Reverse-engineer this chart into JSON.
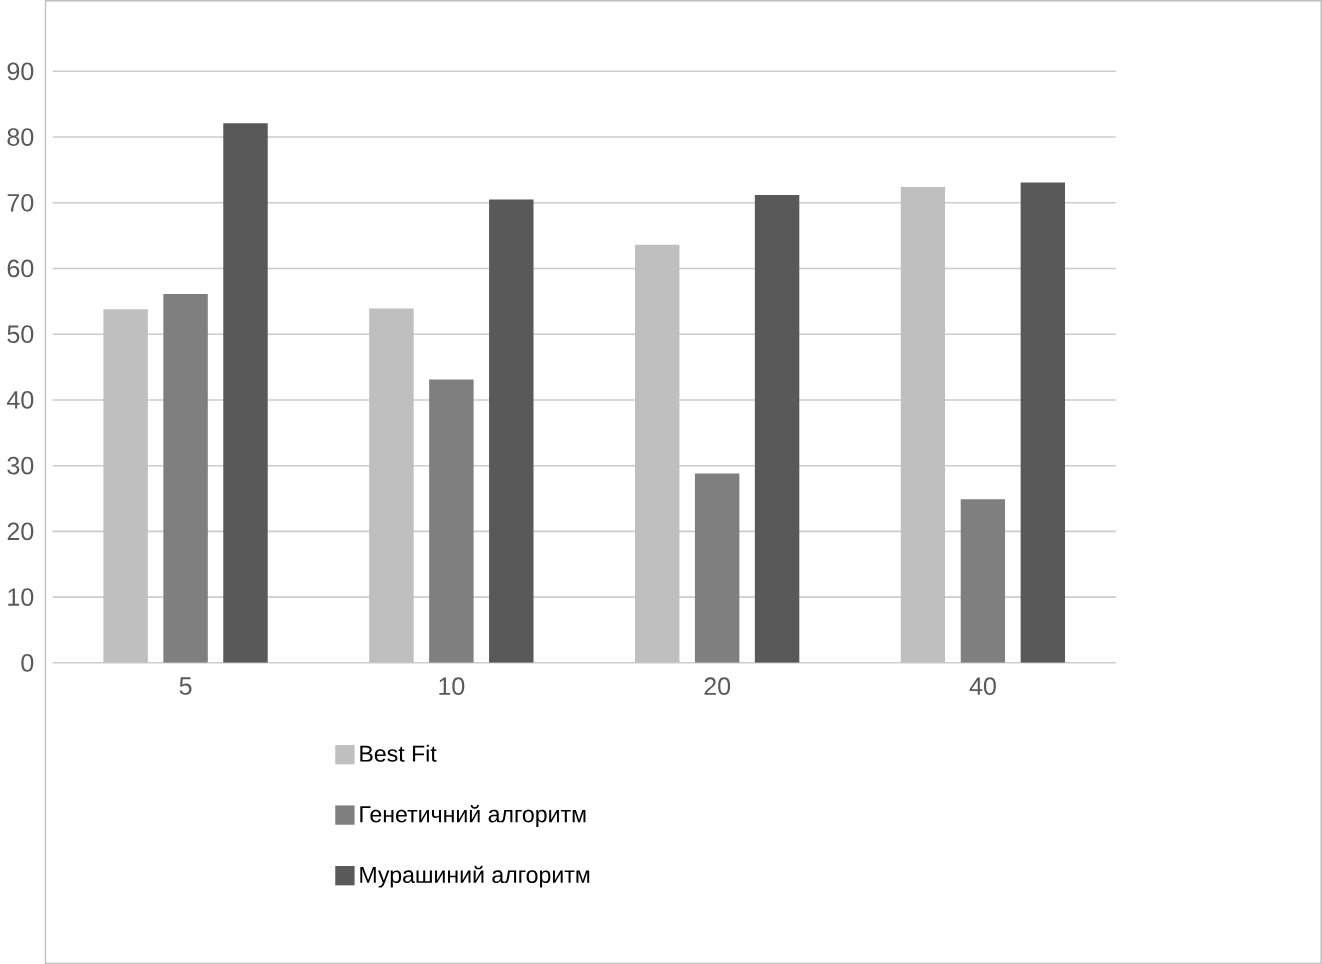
{
  "chart_data": {
    "type": "bar",
    "categories": [
      "5",
      "10",
      "20",
      "40"
    ],
    "series": [
      {
        "name": "Best Fit",
        "color": "#bfbfbf",
        "values": [
          53.8,
          53.9,
          63.6,
          72.4
        ]
      },
      {
        "name": "Генетичний алгоритм",
        "color": "#7f7f7f",
        "values": [
          56.1,
          43.1,
          28.8,
          24.9
        ]
      },
      {
        "name": "Мурашиний алгоритм",
        "color": "#595959",
        "values": [
          82.1,
          70.5,
          71.2,
          73.1
        ]
      }
    ],
    "ylim": [
      0,
      90
    ],
    "yticks": [
      0,
      10,
      20,
      30,
      40,
      50,
      60,
      70,
      80,
      90
    ],
    "grid": "y",
    "legend": "bottom"
  }
}
